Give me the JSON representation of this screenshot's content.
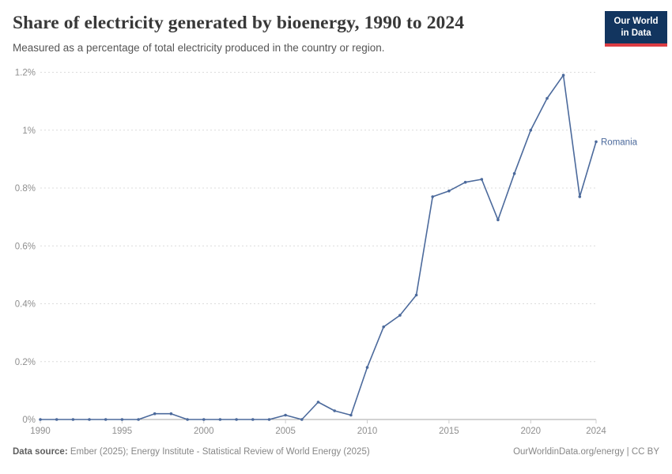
{
  "header": {
    "title": "Share of electricity generated by bioenergy, 1990 to 2024",
    "subtitle": "Measured as a percentage of total electricity produced in the country or region."
  },
  "logo": {
    "line1": "Our World",
    "line2": "in Data",
    "bg_color": "#12355f",
    "accent_color": "#dc3d43"
  },
  "footer": {
    "data_source_label": "Data source:",
    "data_source_text": " Ember (2025); Energy Institute - Statistical Review of World Energy (2025)",
    "attribution": "OurWorldinData.org/energy | CC BY"
  },
  "chart_data": {
    "type": "line",
    "title": "Share of electricity generated by bioenergy, 1990 to 2024",
    "subtitle": "Measured as a percentage of total electricity produced in the country or region.",
    "xlabel": "",
    "ylabel": "",
    "x": [
      1990,
      1991,
      1992,
      1993,
      1994,
      1995,
      1996,
      1997,
      1998,
      1999,
      2000,
      2001,
      2002,
      2003,
      2004,
      2005,
      2006,
      2007,
      2008,
      2009,
      2010,
      2011,
      2012,
      2013,
      2014,
      2015,
      2016,
      2017,
      2018,
      2019,
      2020,
      2021,
      2022,
      2023,
      2024
    ],
    "series": [
      {
        "name": "Romania",
        "color": "#4c6a9c",
        "values": [
          0,
          0,
          0,
          0,
          0,
          0,
          0,
          0.02,
          0.02,
          0,
          0,
          0,
          0,
          0,
          0,
          0.015,
          0,
          0.06,
          0.03,
          0.015,
          0.18,
          0.32,
          0.36,
          0.43,
          0.77,
          0.79,
          0.82,
          0.83,
          0.69,
          0.85,
          1.0,
          1.11,
          1.19,
          0.77,
          0.96
        ]
      }
    ],
    "end_label": "Romania",
    "x_ticks": [
      1990,
      1995,
      2000,
      2005,
      2010,
      2015,
      2020,
      2024
    ],
    "x_tick_labels": [
      "1990",
      "1995",
      "2000",
      "2005",
      "2010",
      "2015",
      "2020",
      "2024"
    ],
    "y_ticks": [
      0,
      0.2,
      0.4,
      0.6,
      0.8,
      1,
      1.2
    ],
    "y_tick_labels": [
      "0%",
      "0.2%",
      "0.4%",
      "0.6%",
      "0.8%",
      "1%",
      "1.2%"
    ],
    "xlim": [
      1990,
      2024
    ],
    "ylim": [
      0,
      1.2
    ],
    "grid": "horizontal-dashed",
    "legend_position": "line-end-label",
    "colors": {
      "grid": "#dcdcdc",
      "axis": "#a5a5a5",
      "tick": "#cccccc",
      "tick_label": "#8f8f8f"
    }
  }
}
